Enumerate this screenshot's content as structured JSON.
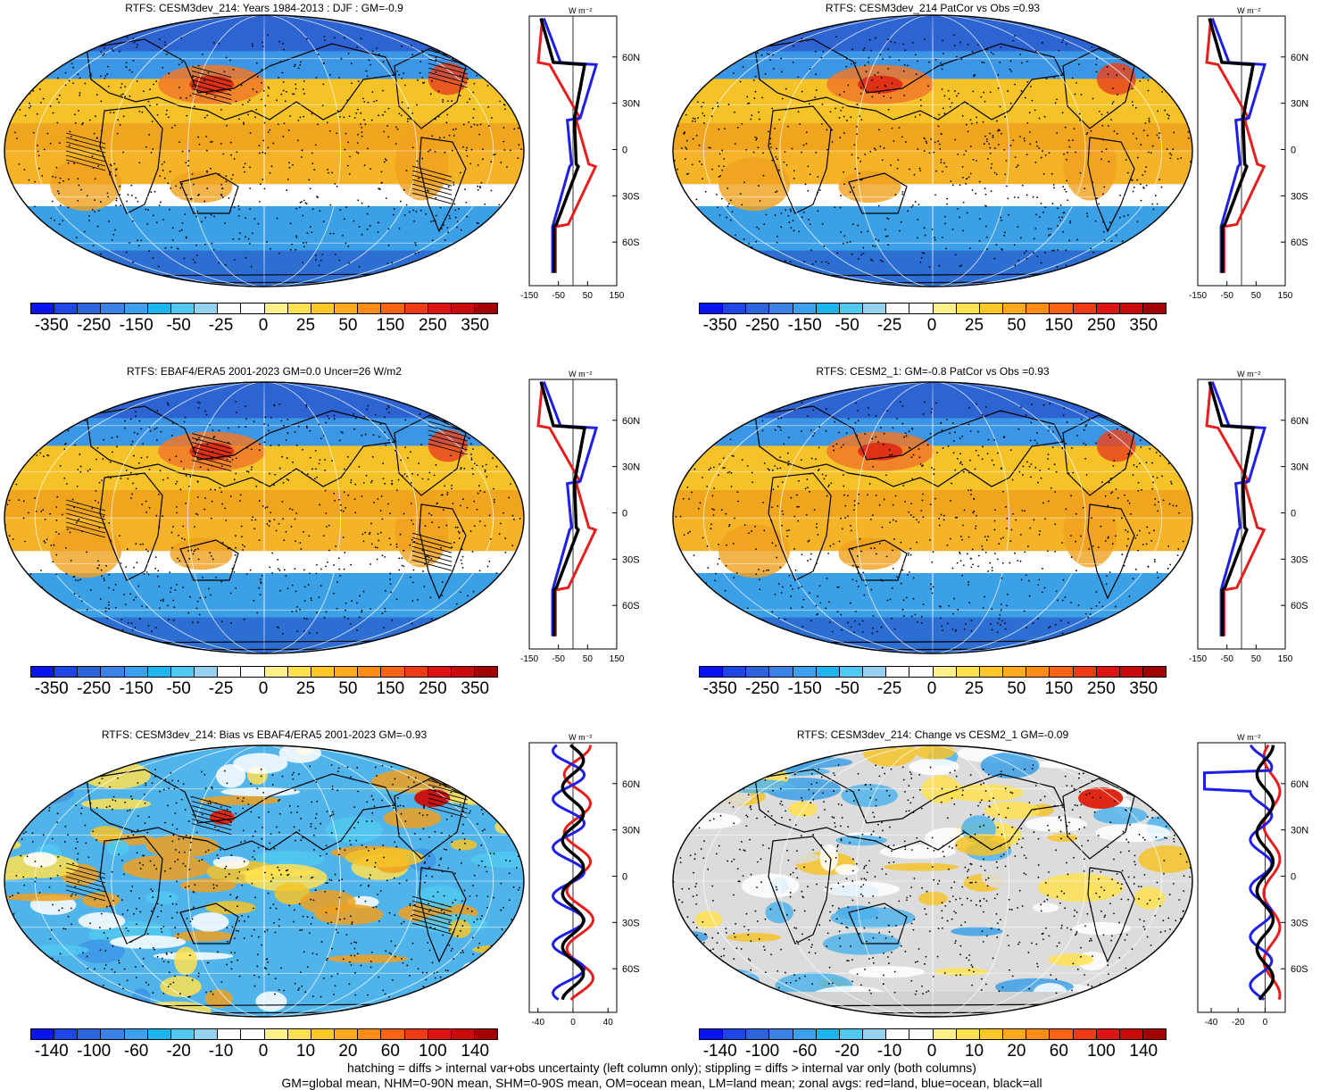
{
  "panels": [
    {
      "title": "RTFS: CESM3dev_214: Years 1984-2013 : DJF : GM=-0.9",
      "colorbar_labels": [
        "-350",
        "-250",
        "-150",
        "-50",
        "-25",
        "0",
        "25",
        "50",
        "150",
        "250",
        "350"
      ],
      "zonal": {
        "units": "W m⁻²",
        "xticks": [
          "-150",
          "-50",
          "50",
          "150"
        ],
        "lat_labels": [
          "60N",
          "30N",
          "0",
          "30S",
          "60S"
        ],
        "kind": "mean"
      },
      "style": "mean",
      "hatch": true
    },
    {
      "title": "RTFS: CESM3dev_214 PatCor vs Obs =0.93",
      "colorbar_labels": [
        "-350",
        "-250",
        "-150",
        "-50",
        "-25",
        "0",
        "25",
        "50",
        "150",
        "250",
        "350"
      ],
      "zonal": {
        "units": "W m⁻²",
        "xticks": [
          "-150",
          "-50",
          "50",
          "150"
        ],
        "lat_labels": [
          "60N",
          "30N",
          "0",
          "30S",
          "60S"
        ],
        "kind": "mean"
      },
      "style": "mean",
      "hatch": false
    },
    {
      "title": "RTFS: EBAF4/ERA5 2001-2023 GM=0.0 Uncer=26 W/m2",
      "colorbar_labels": [
        "-350",
        "-250",
        "-150",
        "-50",
        "-25",
        "0",
        "25",
        "50",
        "150",
        "250",
        "350"
      ],
      "zonal": {
        "units": "W m⁻²",
        "xticks": [
          "-150",
          "-50",
          "50",
          "150"
        ],
        "lat_labels": [
          "60N",
          "30N",
          "0",
          "30S",
          "60S"
        ],
        "kind": "mean"
      },
      "style": "mean",
      "hatch": true
    },
    {
      "title": "RTFS: CESM2_1: GM=-0.8 PatCor vs Obs =0.93",
      "colorbar_labels": [
        "-350",
        "-250",
        "-150",
        "-50",
        "-25",
        "0",
        "25",
        "50",
        "150",
        "250",
        "350"
      ],
      "zonal": {
        "units": "W m⁻²",
        "xticks": [
          "-150",
          "-50",
          "50",
          "150"
        ],
        "lat_labels": [
          "60N",
          "30N",
          "0",
          "30S",
          "60S"
        ],
        "kind": "mean"
      },
      "style": "mean",
      "hatch": false
    },
    {
      "title": "RTFS: CESM3dev_214: Bias vs EBAF4/ERA5 2001-2023 GM=-0.93",
      "colorbar_labels": [
        "-140",
        "-100",
        "-60",
        "-20",
        "-10",
        "0",
        "10",
        "20",
        "60",
        "100",
        "140"
      ],
      "zonal": {
        "units": "W m⁻²",
        "xticks": [
          "-40",
          "0",
          "40"
        ],
        "lat_labels": [
          "60N",
          "30N",
          "0",
          "30S",
          "60S"
        ],
        "kind": "bias"
      },
      "style": "bias",
      "hatch": true
    },
    {
      "title": "RTFS: CESM3dev_214: Change vs CESM2_1 GM=-0.09",
      "colorbar_labels": [
        "-140",
        "-100",
        "-60",
        "-20",
        "-10",
        "0",
        "10",
        "20",
        "60",
        "100",
        "140"
      ],
      "zonal": {
        "units": "W m⁻²",
        "xticks": [
          "-40",
          "-20",
          "0"
        ],
        "lat_labels": [
          "60N",
          "30N",
          "0",
          "30S",
          "60S"
        ],
        "kind": "change"
      },
      "style": "change",
      "hatch": false
    }
  ],
  "colorbar_colors": [
    "#0a14f0",
    "#1e46e6",
    "#2d64dc",
    "#3c82e6",
    "#3ca0f0",
    "#1eb4f0",
    "#50c8f0",
    "#96d2f0",
    "#ffffff",
    "#ffffff",
    "#fff08c",
    "#ffe150",
    "#ffc828",
    "#ffaa1e",
    "#ff8c14",
    "#ff6414",
    "#f03c14",
    "#dc1414",
    "#c80a0a",
    "#a00000"
  ],
  "footer": {
    "line1": "hatching = diffs > internal var+obs uncertainty (left column only); stippling = diffs > internal var only (both columns)",
    "line2": "GM=global mean, NHM=0-90N mean, SHM=0-90S mean, OM=ocean mean, LM=land mean; zonal avgs: red=land, blue=ocean, black=all"
  }
}
